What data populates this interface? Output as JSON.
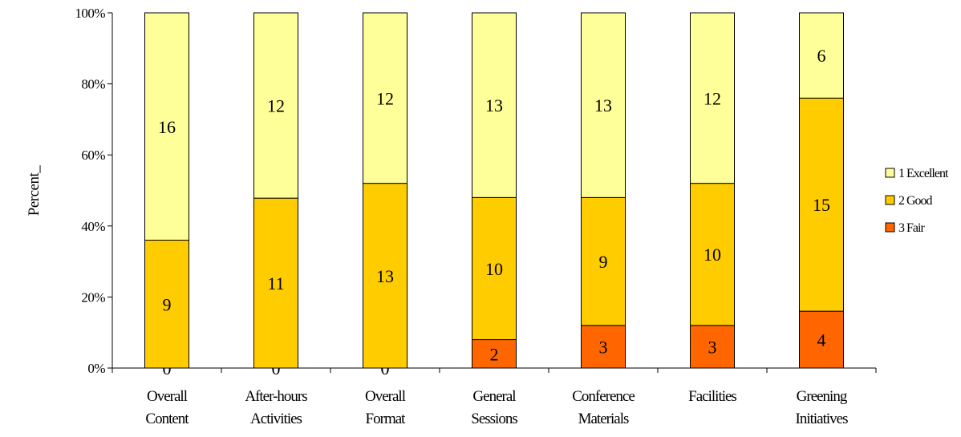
{
  "chart_data": {
    "type": "bar",
    "stacked": true,
    "percent_stacked": true,
    "categories": [
      [
        "Overall",
        "Content"
      ],
      [
        "After-hours",
        "Activities"
      ],
      [
        "Overall",
        "Format"
      ],
      [
        "General",
        "Sessions"
      ],
      [
        "Conference",
        "Materials"
      ],
      [
        "Facilities"
      ],
      [
        "Greening",
        "Initiatives"
      ]
    ],
    "series": [
      {
        "name": "3 Fair",
        "color": "#ff6600",
        "values": [
          0,
          0,
          0,
          2,
          3,
          3,
          4
        ]
      },
      {
        "name": "2 Good",
        "color": "#ffcc00",
        "values": [
          9,
          11,
          13,
          10,
          9,
          10,
          15
        ]
      },
      {
        "name": "1 Excellent",
        "color": "#ffff99",
        "values": [
          16,
          12,
          12,
          13,
          13,
          12,
          6
        ]
      }
    ],
    "legend_order": [
      "1 Excellent",
      "2 Good",
      "3 Fair"
    ],
    "ylabel": "Percent_",
    "xlabel": "",
    "yticks": [
      "0%",
      "20%",
      "40%",
      "60%",
      "80%",
      "100%"
    ],
    "ylim": [
      0,
      100
    ],
    "grid": false,
    "legend_position": "right"
  }
}
